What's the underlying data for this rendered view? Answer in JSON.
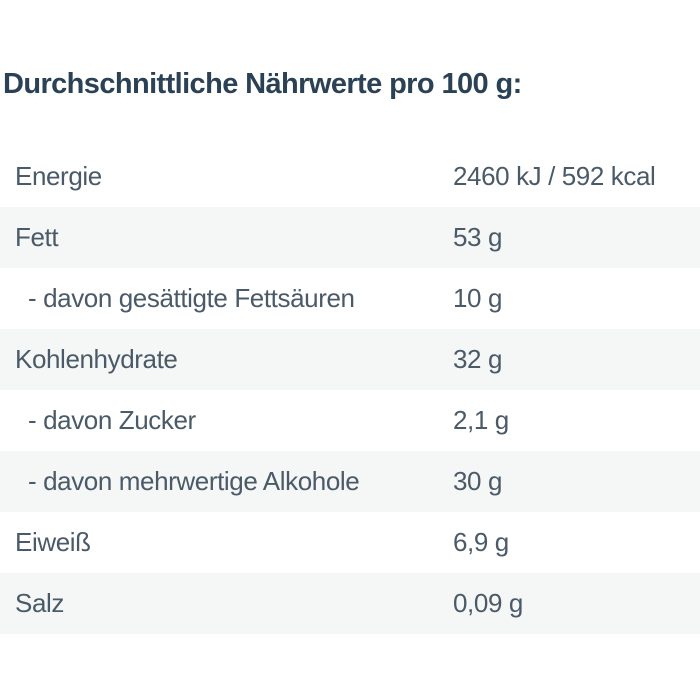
{
  "page": {
    "title": "Durchschnittliche Nährwerte pro 100 g:"
  },
  "table": {
    "rows": [
      {
        "label": "Energie",
        "value": "2460 kJ / 592 kcal",
        "sub": false
      },
      {
        "label": "Fett",
        "value": "53 g",
        "sub": false
      },
      {
        "label": "- davon gesättigte Fettsäuren",
        "value": "10 g",
        "sub": true
      },
      {
        "label": "Kohlenhydrate",
        "value": "32 g",
        "sub": false
      },
      {
        "label": "- davon Zucker",
        "value": "2,1 g",
        "sub": true
      },
      {
        "label": "- davon mehrwertige Alkohole",
        "value": "30 g",
        "sub": true
      },
      {
        "label": "Eiweiß",
        "value": "6,9 g",
        "sub": false
      },
      {
        "label": "Salz",
        "value": "0,09 g",
        "sub": false
      }
    ]
  },
  "colors": {
    "bg": "#ffffff",
    "title-color": "#2b4155",
    "text-color": "#4b5a69",
    "stripe": "#f5f6f6"
  }
}
